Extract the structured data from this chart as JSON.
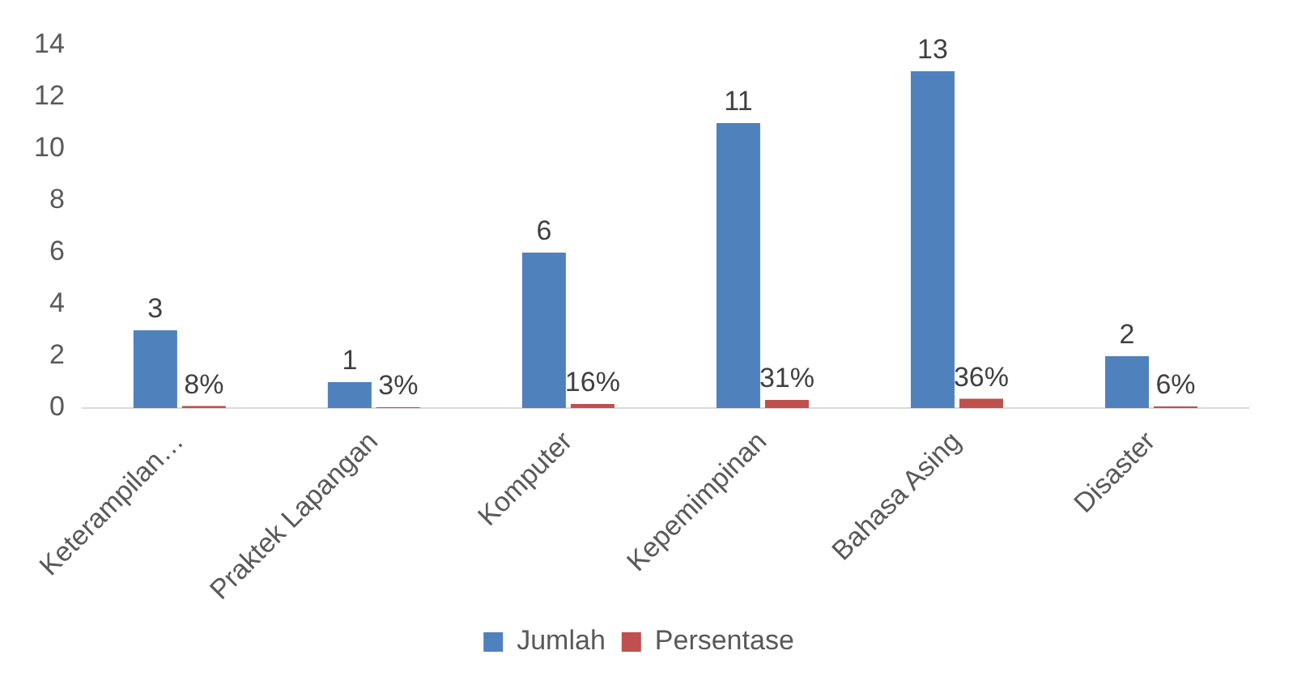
{
  "chart_data": {
    "type": "bar",
    "categories": [
      "Keterampilan…",
      "Praktek Lapangan",
      "Komputer",
      "Kepemimpinan",
      "Bahasa Asing",
      "Disaster"
    ],
    "series": [
      {
        "name": "Jumlah",
        "color": "#4f81bd",
        "values": [
          3,
          1,
          6,
          11,
          13,
          2
        ],
        "value_labels": [
          "3",
          "1",
          "6",
          "11",
          "13",
          "2"
        ]
      },
      {
        "name": "Persentase",
        "color": "#c0504d",
        "values": [
          0.08,
          0.03,
          0.16,
          0.31,
          0.36,
          0.06
        ],
        "value_labels": [
          "8%",
          "3%",
          "16%",
          "31%",
          "36%",
          "6%"
        ]
      }
    ],
    "ylim": [
      0,
      14
    ],
    "yticks": [
      0,
      2,
      4,
      6,
      8,
      10,
      12,
      14
    ],
    "grid": false,
    "legend": "bottom"
  }
}
